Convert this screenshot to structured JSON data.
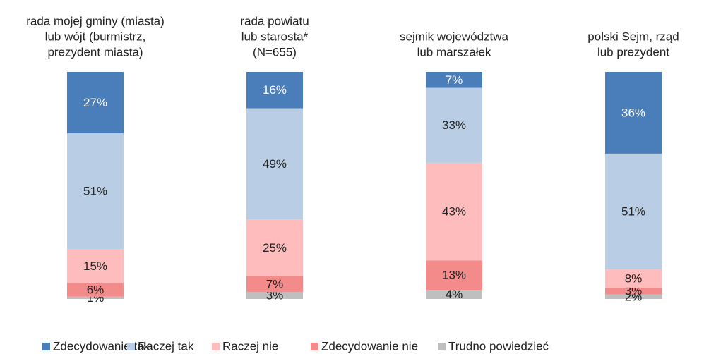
{
  "chart_data": {
    "type": "stacked_bar",
    "categories": [
      [
        "rada mojej gminy (miasta)",
        "lub wójt (burmistrz,",
        "prezydent miasta)"
      ],
      [
        "rada powiatu",
        "lub starosta*",
        "(N=655)"
      ],
      [
        "sejmik województwa",
        "lub marszałek"
      ],
      [
        "polski Sejm, rząd",
        "lub prezydent"
      ]
    ],
    "series": [
      {
        "name": "Zdecydowanie tak",
        "color": "#4a7ebb",
        "values": [
          27,
          16,
          7,
          36
        ],
        "value_labels": [
          "27%",
          "16%",
          "7%",
          "36%"
        ]
      },
      {
        "name": "Raczej tak",
        "color": "#b9cde5",
        "values": [
          51,
          49,
          33,
          51
        ],
        "value_labels": [
          "51%",
          "49%",
          "33%",
          "51%"
        ]
      },
      {
        "name": "Raczej nie",
        "color": "#ffbcbc",
        "values": [
          15,
          25,
          43,
          8
        ],
        "value_labels": [
          "15%",
          "25%",
          "43%",
          "8%"
        ]
      },
      {
        "name": "Zdecydowanie nie",
        "color": "#f38b8b",
        "values": [
          6,
          7,
          13,
          3
        ],
        "value_labels": [
          "6%",
          "7%",
          "13%",
          "3%"
        ]
      },
      {
        "name": "Trudno powiedzieć",
        "color": "#bfbfbf",
        "values": [
          1,
          3,
          4,
          2
        ],
        "value_labels": [
          "1%",
          "3%",
          "4%",
          "2%"
        ]
      }
    ],
    "legend": "bottom"
  }
}
